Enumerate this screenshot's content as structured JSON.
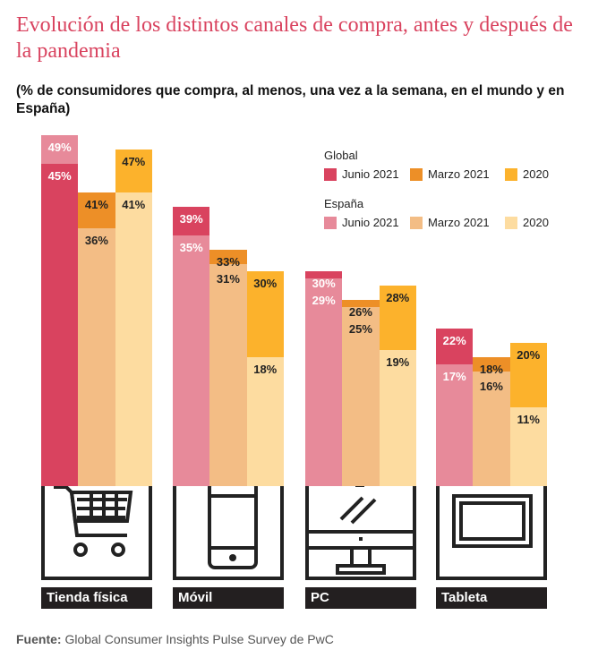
{
  "chart_data": {
    "type": "bar",
    "title": "Evolución de los distintos canales de compra, antes y después de la pandemia",
    "subtitle": "(% de consumidores que compra, al menos, una vez a la semana, en el mundo y en España)",
    "categories": [
      "Tienda física",
      "Móvil",
      "PC",
      "Tableta"
    ],
    "periods": [
      "Junio 2021",
      "Marzo 2021",
      "2020"
    ],
    "series": [
      {
        "name": "Global",
        "values": [
          [
            45,
            41,
            47
          ],
          [
            39,
            33,
            30
          ],
          [
            30,
            26,
            28
          ],
          [
            22,
            18,
            20
          ]
        ],
        "colors": [
          "#d9435f",
          "#ed8f27",
          "#fcb22c"
        ]
      },
      {
        "name": "España",
        "values": [
          [
            49,
            36,
            41
          ],
          [
            35,
            31,
            18
          ],
          [
            29,
            25,
            19
          ],
          [
            17,
            16,
            11
          ]
        ],
        "colors": [
          "#e78a9a",
          "#f3bd85",
          "#fddca0"
        ]
      }
    ],
    "value_suffix": "%",
    "legend": {
      "placement": "top-right",
      "global_label": "Global",
      "spain_label": "España"
    },
    "ylim": [
      0,
      50
    ]
  },
  "icons": [
    "shopping-cart-icon",
    "mobile-phone-icon",
    "desktop-monitor-icon",
    "tablet-icon"
  ],
  "source": {
    "label": "Fuente:",
    "text": " Global Consumer Insights Pulse Survey de PwC"
  }
}
